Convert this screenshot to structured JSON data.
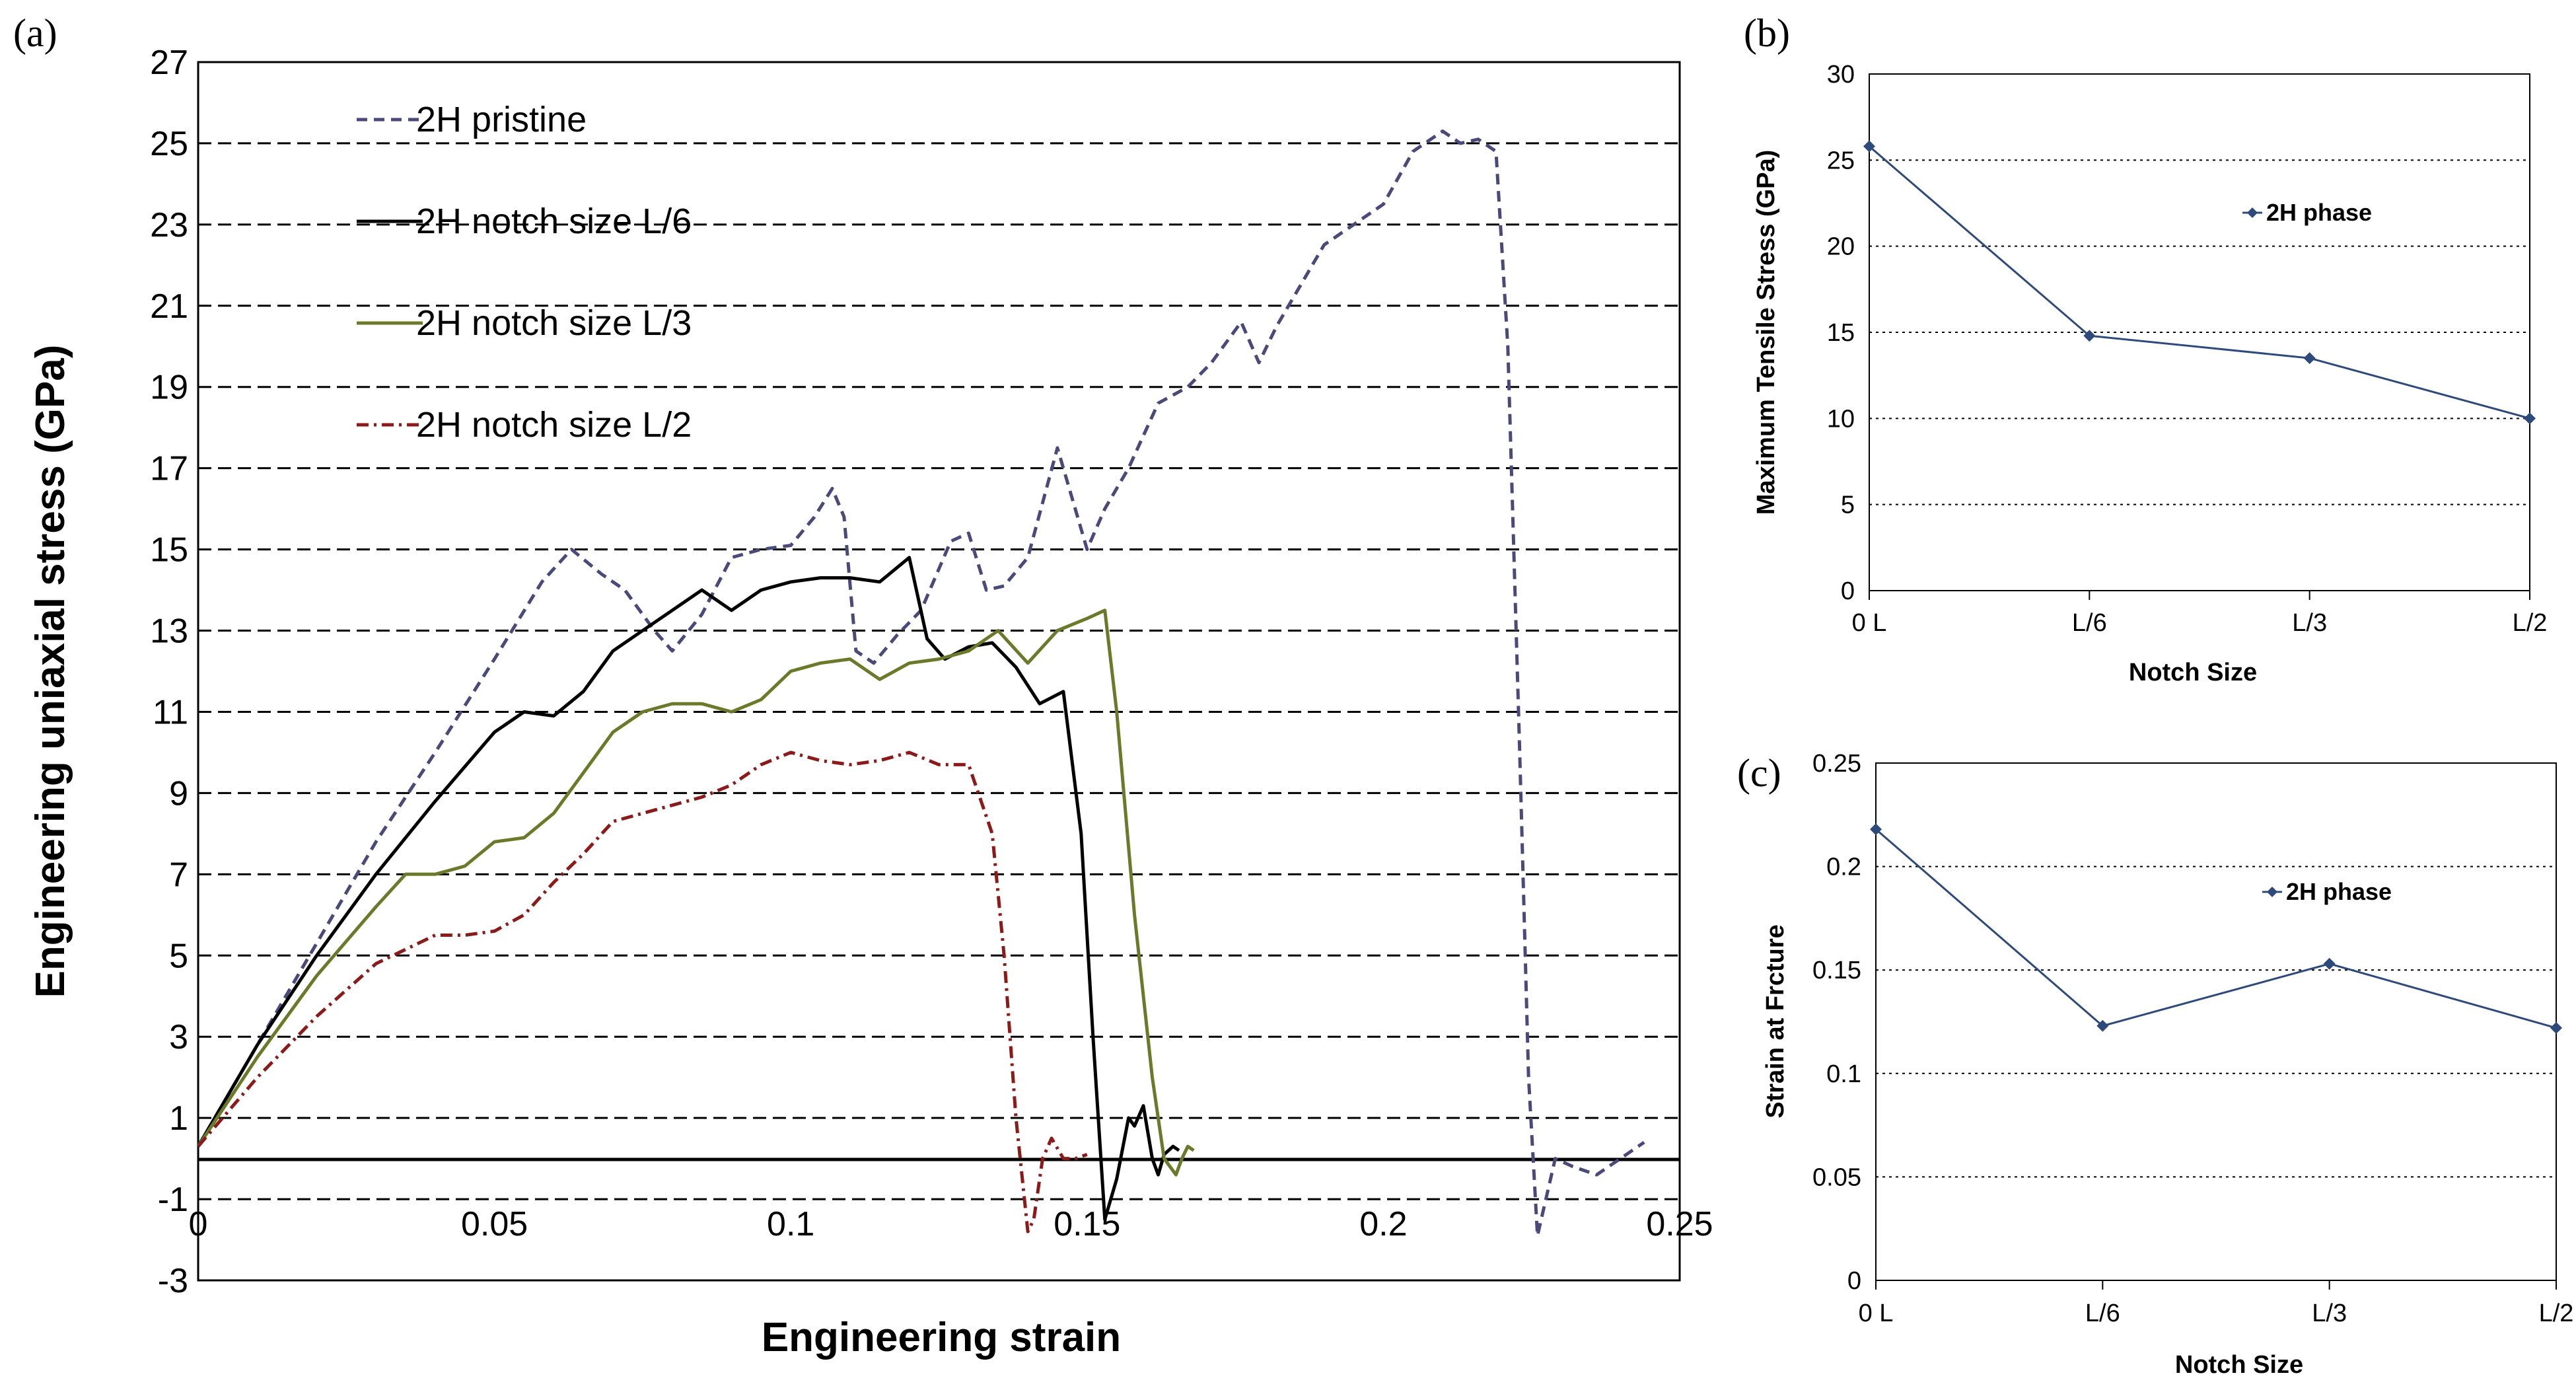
{
  "chart_data": [
    {
      "panel": "(a)",
      "type": "line",
      "xlabel": "Engineering strain",
      "ylabel": "Engineering uniaxial stress (GPa)",
      "xlim": [
        0,
        0.25
      ],
      "ylim": [
        -3,
        27
      ],
      "xticks": [
        "0",
        "0.05",
        "0.1",
        "0.15",
        "0.2",
        "0.25"
      ],
      "yticks": [
        "27",
        "25",
        "23",
        "21",
        "19",
        "17",
        "15",
        "13",
        "11",
        "9",
        "7",
        "5",
        "3",
        "1",
        "-1",
        "-3"
      ],
      "grid": "horizontal dashed",
      "legend_position": "top-left",
      "series": [
        {
          "name": "2H pristine",
          "color": "#4a4a7a",
          "style": "dashed",
          "x": [
            0,
            0.01,
            0.02,
            0.03,
            0.04,
            0.05,
            0.058,
            0.063,
            0.068,
            0.072,
            0.077,
            0.08,
            0.085,
            0.09,
            0.095,
            0.1,
            0.104,
            0.107,
            0.109,
            0.111,
            0.114,
            0.118,
            0.122,
            0.127,
            0.13,
            0.133,
            0.136,
            0.14,
            0.145,
            0.15,
            0.153,
            0.157,
            0.162,
            0.167,
            0.171,
            0.176,
            0.179,
            0.182,
            0.186,
            0.19,
            0.195,
            0.2,
            0.205,
            0.21,
            0.213,
            0.216,
            0.219,
            0.221,
            0.223,
            0.2245,
            0.226,
            0.229,
            0.232,
            0.236,
            0.24,
            0.244
          ],
          "y": [
            0.3,
            2.8,
            5.3,
            7.8,
            10,
            12.3,
            14.2,
            15,
            14.4,
            14,
            13,
            12.5,
            13.4,
            14.8,
            15,
            15.1,
            15.8,
            16.5,
            15.8,
            12.5,
            12.2,
            12.9,
            13.5,
            15.2,
            15.4,
            14,
            14.1,
            14.8,
            17.5,
            15,
            16,
            17,
            18.6,
            19,
            19.6,
            20.6,
            19.6,
            20.5,
            21.5,
            22.5,
            23,
            23.5,
            24.8,
            25.3,
            25,
            25.1,
            24.8,
            20,
            10,
            2,
            -1.9,
            0,
            -0.2,
            -0.4,
            0,
            0.4
          ]
        },
        {
          "name": "2H notch size L/6",
          "color": "#000000",
          "style": "solid",
          "x": [
            0,
            0.01,
            0.02,
            0.03,
            0.04,
            0.05,
            0.055,
            0.06,
            0.065,
            0.07,
            0.075,
            0.08,
            0.085,
            0.09,
            0.095,
            0.1,
            0.105,
            0.11,
            0.115,
            0.12,
            0.123,
            0.126,
            0.13,
            0.134,
            0.138,
            0.142,
            0.146,
            0.149,
            0.151,
            0.153,
            0.155,
            0.157,
            0.158,
            0.1595,
            0.161,
            0.162,
            0.163,
            0.1645,
            0.1655
          ],
          "y": [
            0.3,
            2.8,
            5,
            7,
            8.8,
            10.5,
            11,
            10.9,
            11.5,
            12.5,
            13,
            13.5,
            14,
            13.5,
            14,
            14.2,
            14.3,
            14.3,
            14.2,
            14.8,
            12.8,
            12.3,
            12.6,
            12.7,
            12.1,
            11.2,
            11.5,
            8,
            3,
            -1.5,
            -0.5,
            1,
            0.8,
            1.3,
            0,
            -0.4,
            0.1,
            0.3,
            0.2
          ]
        },
        {
          "name": "2H notch size L/3",
          "color": "#6b7a2a",
          "style": "solid",
          "x": [
            0,
            0.01,
            0.02,
            0.03,
            0.035,
            0.04,
            0.045,
            0.05,
            0.055,
            0.06,
            0.065,
            0.07,
            0.075,
            0.08,
            0.085,
            0.09,
            0.095,
            0.1,
            0.105,
            0.11,
            0.115,
            0.12,
            0.125,
            0.13,
            0.135,
            0.14,
            0.145,
            0.15,
            0.153,
            0.155,
            0.158,
            0.161,
            0.163,
            0.165,
            0.166,
            0.167,
            0.168
          ],
          "y": [
            0.3,
            2.5,
            4.5,
            6.2,
            7,
            7,
            7.2,
            7.8,
            7.9,
            8.5,
            9.5,
            10.5,
            11,
            11.2,
            11.2,
            11,
            11.3,
            12,
            12.2,
            12.3,
            11.8,
            12.2,
            12.3,
            12.5,
            13,
            12.2,
            13,
            13.3,
            13.5,
            11,
            6,
            2,
            0,
            -0.4,
            0,
            0.3,
            0.2
          ]
        },
        {
          "name": "2H notch size L/2",
          "color": "#8b1a1a",
          "style": "dashdot",
          "x": [
            0,
            0.01,
            0.02,
            0.03,
            0.04,
            0.045,
            0.05,
            0.055,
            0.06,
            0.065,
            0.07,
            0.075,
            0.08,
            0.085,
            0.09,
            0.095,
            0.1,
            0.105,
            0.11,
            0.115,
            0.12,
            0.125,
            0.13,
            0.134,
            0.136,
            0.138,
            0.14,
            0.141,
            0.1425,
            0.144,
            0.146,
            0.148,
            0.15
          ],
          "y": [
            0.3,
            2,
            3.5,
            4.8,
            5.5,
            5.5,
            5.6,
            6,
            6.8,
            7.5,
            8.3,
            8.5,
            8.7,
            8.9,
            9.2,
            9.7,
            10,
            9.8,
            9.7,
            9.8,
            10,
            9.7,
            9.7,
            8,
            5,
            1,
            -1.8,
            -1.5,
            0,
            0.5,
            0,
            0,
            0.1
          ]
        }
      ]
    },
    {
      "panel": "(b)",
      "type": "line",
      "xlabel": "Notch Size",
      "ylabel": "Maximum Tensile Stress (GPa)",
      "categories": [
        "0 L",
        "L/6",
        "L/3",
        "L/2"
      ],
      "ylim": [
        0,
        30
      ],
      "yticks": [
        "0",
        "5",
        "10",
        "15",
        "20",
        "25",
        "30"
      ],
      "grid": "horizontal dotted",
      "legend_position": "top-right",
      "series": [
        {
          "name": "2H phase",
          "color": "#2e4a7a",
          "values": [
            25.8,
            14.8,
            13.5,
            10
          ]
        }
      ]
    },
    {
      "panel": "(c)",
      "type": "line",
      "xlabel": "Notch Size",
      "ylabel": "Strain at Frcture",
      "categories": [
        "0 L",
        "L/6",
        "L/3",
        "L/2"
      ],
      "ylim": [
        0,
        0.25
      ],
      "yticks": [
        "0",
        "0.05",
        "0.1",
        "0.15",
        "0.2",
        "0.25"
      ],
      "grid": "horizontal dotted",
      "legend_position": "top-right",
      "series": [
        {
          "name": "2H phase",
          "color": "#2e4a7a",
          "values": [
            0.218,
            0.123,
            0.153,
            0.122
          ]
        }
      ]
    }
  ]
}
